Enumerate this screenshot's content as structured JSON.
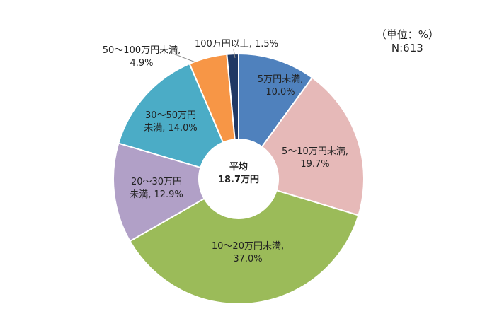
{
  "chart_data": {
    "type": "pie",
    "variant": "donut",
    "center_label": [
      "平均",
      "18.7万円"
    ],
    "unit_note": "（単位：%）",
    "n_label": "N:613",
    "slices": [
      {
        "label": "5万円未満",
        "value": 10.0,
        "display": "10.0%",
        "color": "#4f81bd"
      },
      {
        "label": "5～10万円未満",
        "value": 19.7,
        "display": "19.7%",
        "color": "#e6b9b8"
      },
      {
        "label": "10～20万円未満",
        "value": 37.0,
        "display": "37.0%",
        "color": "#9bbb59"
      },
      {
        "label": "20～30万円未満",
        "value": 12.9,
        "display": "12.9%",
        "color": "#b1a0c7"
      },
      {
        "label": "30～50万円未満",
        "value": 14.0,
        "display": "14.0%",
        "color": "#4bacc6"
      },
      {
        "label": "50～100万円未満",
        "value": 4.9,
        "display": "4.9%",
        "color": "#f79646"
      },
      {
        "label": "100万円以上",
        "value": 1.5,
        "display": "1.5%",
        "color": "#1f3864"
      }
    ]
  }
}
